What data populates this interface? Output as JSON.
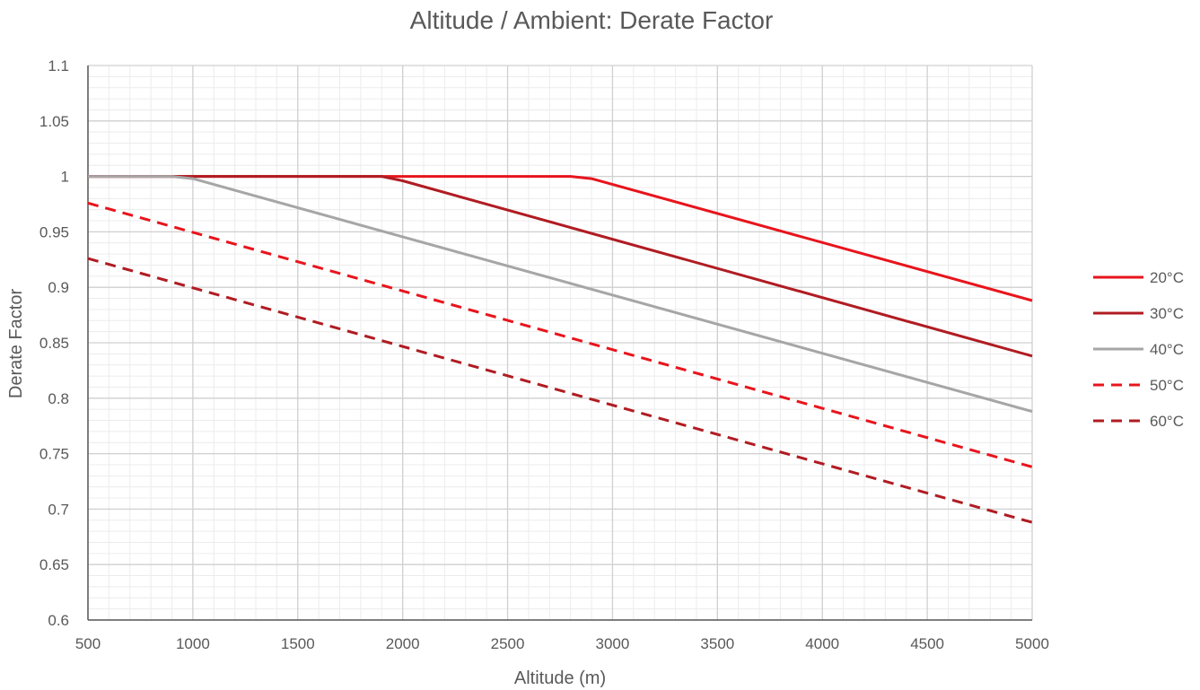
{
  "chart_data": {
    "type": "line",
    "title": "Altitude / Ambient: Derate Factor",
    "xlabel": "Altitude (m)",
    "ylabel": "Derate Factor",
    "xlim": [
      500,
      5000
    ],
    "ylim": [
      0.6,
      1.1
    ],
    "xticks": [
      500,
      1000,
      1500,
      2000,
      2500,
      3000,
      3500,
      4000,
      4500,
      5000
    ],
    "xtick_labels": [
      "500",
      "1000",
      "1500",
      "2000",
      "2500",
      "3000",
      "3500",
      "4000",
      "4500",
      "5000"
    ],
    "yticks": [
      0.6,
      0.65,
      0.7,
      0.75,
      0.8,
      0.85,
      0.9,
      0.95,
      1,
      1.05,
      1.1
    ],
    "ytick_labels": [
      "0.6",
      "0.65",
      "0.7",
      "0.75",
      "0.8",
      "0.85",
      "0.9",
      "0.95",
      "1",
      "1.05",
      "1.1"
    ],
    "grid": true,
    "minor_grid": true,
    "legend_position": "right",
    "series": [
      {
        "name": "20°C",
        "color": "#e8141c",
        "dash": "solid",
        "x": [
          500,
          2800,
          2900,
          5000
        ],
        "y": [
          1.0,
          1.0,
          0.998,
          0.888
        ]
      },
      {
        "name": "30°C",
        "color": "#b01c22",
        "dash": "solid",
        "x": [
          500,
          1900,
          2000,
          5000
        ],
        "y": [
          1.0,
          1.0,
          0.996,
          0.838
        ]
      },
      {
        "name": "40°C",
        "color": "#a6a6a6",
        "dash": "solid",
        "x": [
          500,
          900,
          1000,
          5000
        ],
        "y": [
          1.0,
          1.0,
          0.998,
          0.788
        ]
      },
      {
        "name": "50°C",
        "color": "#e8141c",
        "dash": "dashed",
        "x": [
          500,
          5000
        ],
        "y": [
          0.976,
          0.738
        ]
      },
      {
        "name": "60°C",
        "color": "#b01c22",
        "dash": "dashed",
        "x": [
          500,
          5000
        ],
        "y": [
          0.926,
          0.688
        ]
      }
    ]
  }
}
